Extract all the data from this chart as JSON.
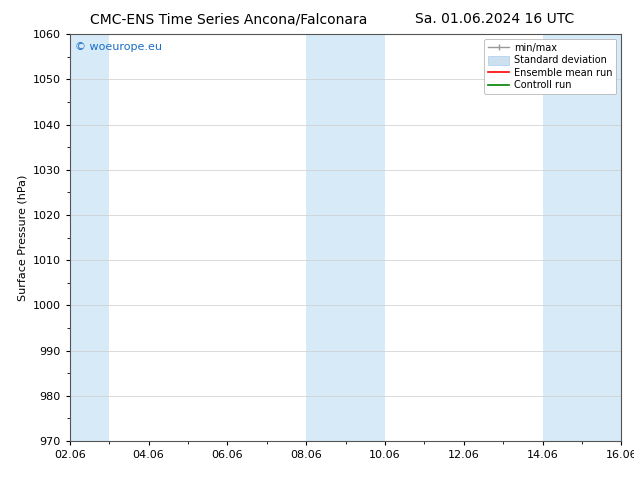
{
  "title_left": "CMC-ENS Time Series Ancona/Falconara",
  "title_right": "Sa. 01.06.2024 16 UTC",
  "ylabel": "Surface Pressure (hPa)",
  "ylim": [
    970,
    1060
  ],
  "yticks": [
    970,
    980,
    990,
    1000,
    1010,
    1020,
    1030,
    1040,
    1050,
    1060
  ],
  "xtick_labels": [
    "02.06",
    "04.06",
    "06.06",
    "08.06",
    "10.06",
    "12.06",
    "14.06",
    "16.06"
  ],
  "xtick_positions": [
    0,
    2,
    4,
    6,
    8,
    10,
    12,
    14
  ],
  "xlim": [
    -0.1,
    14.5
  ],
  "xmin": 0,
  "xmax": 14,
  "shaded_bands": [
    {
      "x_start": 0,
      "x_end": 1,
      "color": "#d6eaf8"
    },
    {
      "x_start": 6,
      "x_end": 8,
      "color": "#d6eaf8"
    },
    {
      "x_start": 12,
      "x_end": 14,
      "color": "#d6eaf8"
    }
  ],
  "watermark_text": "© woeurope.eu",
  "watermark_color": "#1a6ec7",
  "bg_color": "#ffffff",
  "grid_color": "#cccccc",
  "title_fontsize": 10,
  "ylabel_fontsize": 8,
  "tick_fontsize": 8
}
